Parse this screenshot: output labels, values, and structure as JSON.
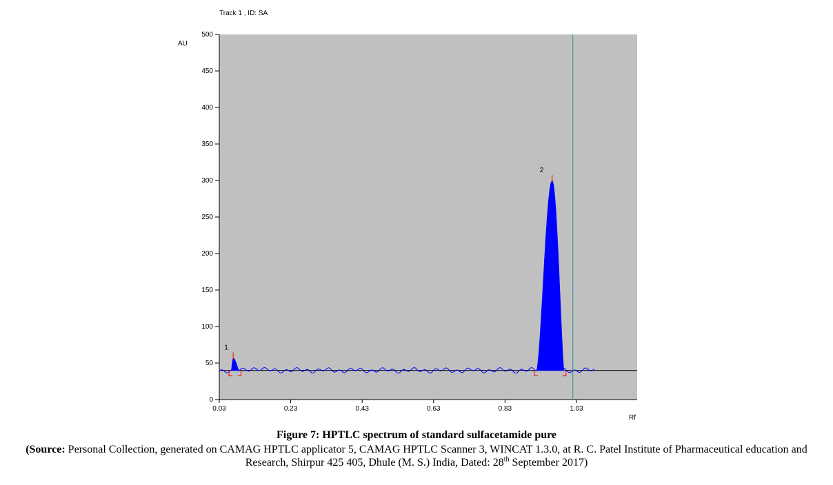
{
  "chart_data": {
    "type": "area",
    "title": "Track  1 , ID: SA",
    "ylabel": "AU",
    "xlabel": "Rf",
    "xlim": [
      0.03,
      1.2
    ],
    "ylim": [
      0,
      500
    ],
    "x_ticks": [
      "0.03",
      "0.23",
      "0.43",
      "0.63",
      "0.83",
      "1.03"
    ],
    "y_ticks": [
      "0",
      "50",
      "100",
      "150",
      "200",
      "250",
      "300",
      "350",
      "400",
      "450",
      "500"
    ],
    "baseline": 40,
    "cutoff_rf": 1.02,
    "grid": false,
    "background": "#c0c0c0",
    "trace_color": "#0000ff",
    "baseline_color": "#000000",
    "cutoff_color": "#3a8a8a",
    "marker_color": "#ff0000",
    "peaks": [
      {
        "label": "1",
        "rf_start": 0.063,
        "rf_max": 0.069,
        "rf_end": 0.085,
        "height": 57
      },
      {
        "label": "2",
        "rf_start": 0.918,
        "rf_max": 0.962,
        "rf_end": 0.995,
        "height": 300
      }
    ]
  },
  "caption": {
    "figure": "Figure 7: HPTLC spectrum of standard sulfacetamide pure",
    "source_label": "(Source:",
    "source_text": "Personal Collection, generated on CAMAG HPTLC applicator 5, CAMAG HPTLC Scanner 3, WINCAT 1.3.0, at R. C. Patel Institute of Pharmaceutical education and Research, Shirpur 425 405, Dhule (M. S.) India, Dated: 28",
    "source_sup": "th",
    "source_end": " September 2017)"
  }
}
